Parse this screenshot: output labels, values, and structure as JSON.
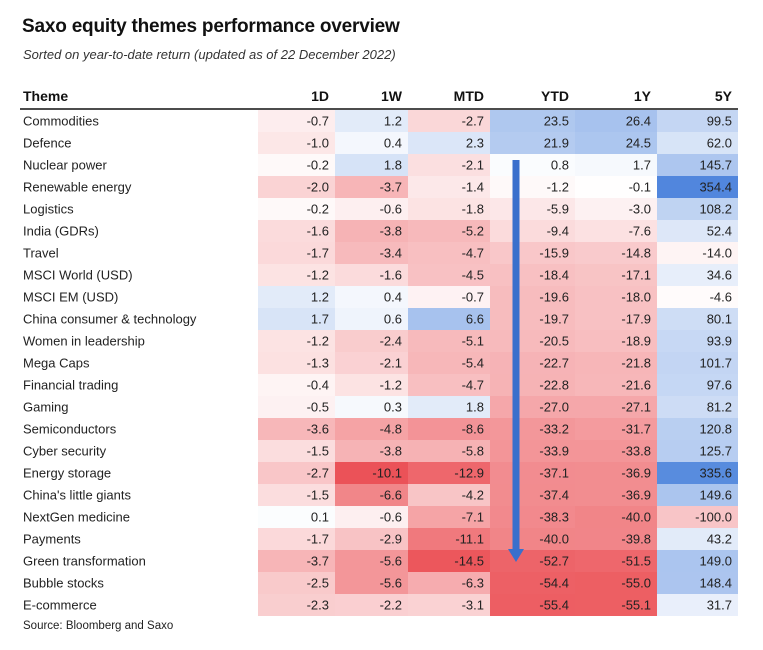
{
  "title": "Saxo equity themes performance overview",
  "subtitle": "Sorted on year-to-date return (updated as of 22 December 2022)",
  "source": "Source: Bloomberg and Saxo",
  "colors": {
    "positive": "#2f6fd6",
    "negative": "#e8343a",
    "arrow": "#3a6fcc",
    "header_rule": "#111111"
  },
  "chart_data": {
    "type": "table",
    "columns": [
      "Theme",
      "1D",
      "1W",
      "MTD",
      "YTD",
      "1Y",
      "5Y"
    ],
    "rows": [
      {
        "theme": "Commodities",
        "values": [
          -0.7,
          1.2,
          -2.7,
          23.5,
          26.4,
          99.5
        ]
      },
      {
        "theme": "Defence",
        "values": [
          -1.0,
          0.4,
          2.3,
          21.9,
          24.5,
          62.0
        ]
      },
      {
        "theme": "Nuclear power",
        "values": [
          -0.2,
          1.8,
          -2.1,
          0.8,
          1.7,
          145.7
        ]
      },
      {
        "theme": "Renewable energy",
        "values": [
          -2.0,
          -3.7,
          -1.4,
          -1.2,
          -0.1,
          354.4
        ]
      },
      {
        "theme": "Logistics",
        "values": [
          -0.2,
          -0.6,
          -1.8,
          -5.9,
          -3.0,
          108.2
        ]
      },
      {
        "theme": "India (GDRs)",
        "values": [
          -1.6,
          -3.8,
          -5.2,
          -9.4,
          -7.6,
          52.4
        ]
      },
      {
        "theme": "Travel",
        "values": [
          -1.7,
          -3.4,
          -4.7,
          -15.9,
          -14.8,
          -14.0
        ]
      },
      {
        "theme": "MSCI World (USD)",
        "values": [
          -1.2,
          -1.6,
          -4.5,
          -18.4,
          -17.1,
          34.6
        ]
      },
      {
        "theme": "MSCI EM (USD)",
        "values": [
          1.2,
          0.4,
          -0.7,
          -19.6,
          -18.0,
          -4.6
        ]
      },
      {
        "theme": "China consumer & technology",
        "values": [
          1.7,
          0.6,
          6.6,
          -19.7,
          -17.9,
          80.1
        ]
      },
      {
        "theme": "Women in leadership",
        "values": [
          -1.2,
          -2.4,
          -5.1,
          -20.5,
          -18.9,
          93.9
        ]
      },
      {
        "theme": "Mega Caps",
        "values": [
          -1.3,
          -2.1,
          -5.4,
          -22.7,
          -21.8,
          101.7
        ]
      },
      {
        "theme": "Financial trading",
        "values": [
          -0.4,
          -1.2,
          -4.7,
          -22.8,
          -21.6,
          97.6
        ]
      },
      {
        "theme": "Gaming",
        "values": [
          -0.5,
          0.3,
          1.8,
          -27.0,
          -27.1,
          81.2
        ]
      },
      {
        "theme": "Semiconductors",
        "values": [
          -3.6,
          -4.8,
          -8.6,
          -33.2,
          -31.7,
          120.8
        ]
      },
      {
        "theme": "Cyber security",
        "values": [
          -1.5,
          -3.8,
          -5.8,
          -33.9,
          -33.8,
          125.7
        ]
      },
      {
        "theme": "Energy storage",
        "values": [
          -2.7,
          -10.1,
          -12.9,
          -37.1,
          -36.9,
          335.6
        ]
      },
      {
        "theme": "China's little giants",
        "values": [
          -1.5,
          -6.6,
          -4.2,
          -37.4,
          -36.9,
          149.6
        ]
      },
      {
        "theme": "NextGen medicine",
        "values": [
          0.1,
          -0.6,
          -7.1,
          -38.3,
          -40.0,
          -100.0
        ]
      },
      {
        "theme": "Payments",
        "values": [
          -1.7,
          -2.9,
          -11.1,
          -40.0,
          -39.8,
          43.2
        ]
      },
      {
        "theme": "Green transformation",
        "values": [
          -3.7,
          -5.6,
          -14.5,
          -52.7,
          -51.5,
          149.0
        ]
      },
      {
        "theme": "Bubble stocks",
        "values": [
          -2.5,
          -5.6,
          -6.3,
          -54.4,
          -55.0,
          148.4
        ]
      },
      {
        "theme": "E-commerce",
        "values": [
          -2.3,
          -2.2,
          -3.1,
          -55.4,
          -55.1,
          31.7
        ]
      }
    ],
    "color_scale_max": [
      10,
      10,
      15,
      60,
      60,
      360
    ],
    "annotation": "downward arrow over YTD column indicating sort order"
  }
}
